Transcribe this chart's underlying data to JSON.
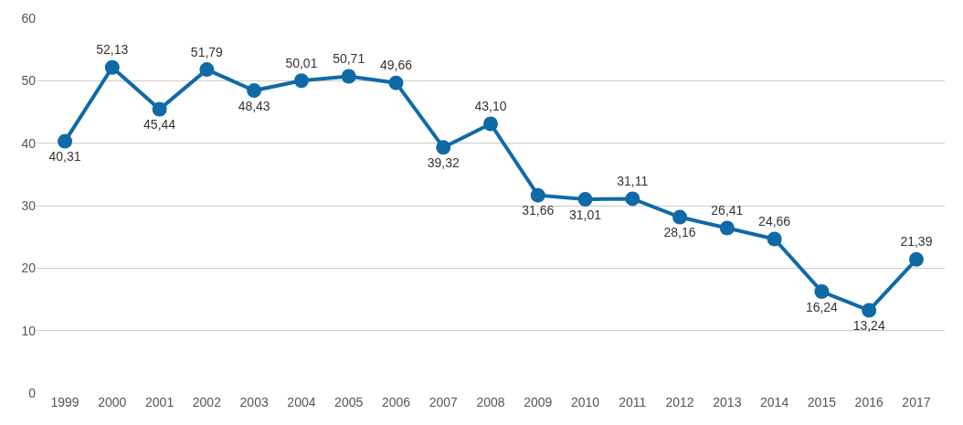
{
  "chart_data": {
    "type": "line",
    "categories": [
      "1999",
      "2000",
      "2001",
      "2002",
      "2003",
      "2004",
      "2005",
      "2006",
      "2007",
      "2008",
      "2009",
      "2010",
      "2011",
      "2012",
      "2013",
      "2014",
      "2015",
      "2016",
      "2017"
    ],
    "series": [
      {
        "color": "#0f6aa6",
        "values": [
          40.31,
          52.13,
          45.44,
          51.79,
          48.43,
          50.01,
          50.71,
          49.66,
          39.32,
          43.1,
          31.66,
          31.01,
          31.11,
          28.16,
          26.41,
          24.66,
          16.24,
          13.24,
          21.39
        ],
        "value_labels": [
          "40,31",
          "52,13",
          "45,44",
          "51,79",
          "48,43",
          "50,01",
          "50,71",
          "49,66",
          "39,32",
          "43,10",
          "31,66",
          "31,01",
          "31,11",
          "28,16",
          "26,41",
          "24,66",
          "16,24",
          "13,24",
          "21,39"
        ]
      }
    ],
    "ylim": [
      0,
      60
    ],
    "yticks": [
      0,
      10,
      20,
      30,
      40,
      50,
      60
    ],
    "grid": "y",
    "legend": false,
    "marker": "circle",
    "line_style": "solid"
  }
}
